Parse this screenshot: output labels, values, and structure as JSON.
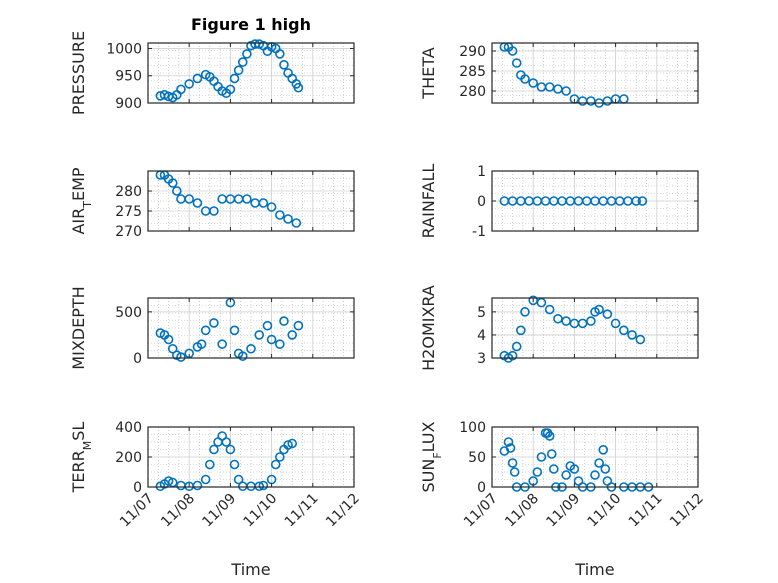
{
  "figure": {
    "title": "Figure 1 high",
    "xlabel": "Time"
  },
  "colors": {
    "marker": "#0072BD",
    "axis": "#262626",
    "grid": "#b5b5b5",
    "background": "#ffffff"
  },
  "chart_data": [
    {
      "type": "scatter",
      "panel": "PRESSURE",
      "title": "Figure 1 high",
      "ylabel": "PRESSURE",
      "ylim": [
        900,
        1010
      ],
      "yticks": [
        900,
        950,
        1000
      ],
      "grid": true,
      "xlim": [
        "11/07",
        "11/12"
      ],
      "xticks": [
        "11/07",
        "11/08",
        "11/09",
        "11/10",
        "11/11",
        "11/12"
      ],
      "show_xticklabels": false,
      "points": [
        [
          7.3,
          913
        ],
        [
          7.4,
          915
        ],
        [
          7.5,
          912
        ],
        [
          7.6,
          910
        ],
        [
          7.7,
          915
        ],
        [
          7.8,
          925
        ],
        [
          8.0,
          935
        ],
        [
          8.2,
          945
        ],
        [
          8.4,
          952
        ],
        [
          8.5,
          948
        ],
        [
          8.6,
          940
        ],
        [
          8.7,
          930
        ],
        [
          8.8,
          922
        ],
        [
          8.9,
          918
        ],
        [
          9.0,
          925
        ],
        [
          9.1,
          945
        ],
        [
          9.2,
          960
        ],
        [
          9.3,
          975
        ],
        [
          9.4,
          990
        ],
        [
          9.5,
          1005
        ],
        [
          9.6,
          1008
        ],
        [
          9.7,
          1008
        ],
        [
          9.8,
          1005
        ],
        [
          9.9,
          995
        ],
        [
          10.0,
          1003
        ],
        [
          10.1,
          1000
        ],
        [
          10.2,
          990
        ],
        [
          10.3,
          970
        ],
        [
          10.4,
          955
        ],
        [
          10.5,
          945
        ],
        [
          10.6,
          935
        ],
        [
          10.65,
          928
        ]
      ]
    },
    {
      "type": "scatter",
      "panel": "THETA",
      "ylabel": "THETA",
      "ylim": [
        277,
        292
      ],
      "yticks": [
        280,
        285,
        290
      ],
      "grid": true,
      "xlim": [
        "11/07",
        "11/12"
      ],
      "xticks": [
        "11/07",
        "11/08",
        "11/09",
        "11/10",
        "11/11",
        "11/12"
      ],
      "show_xticklabels": false,
      "points": [
        [
          7.3,
          291
        ],
        [
          7.4,
          291
        ],
        [
          7.5,
          290
        ],
        [
          7.6,
          287
        ],
        [
          7.7,
          284
        ],
        [
          7.8,
          283
        ],
        [
          8.0,
          282
        ],
        [
          8.2,
          281
        ],
        [
          8.4,
          281
        ],
        [
          8.6,
          280.5
        ],
        [
          8.8,
          280
        ],
        [
          9.0,
          278
        ],
        [
          9.2,
          277.5
        ],
        [
          9.4,
          277.5
        ],
        [
          9.6,
          277
        ],
        [
          9.8,
          277.5
        ],
        [
          10.0,
          278
        ],
        [
          10.2,
          278
        ]
      ]
    },
    {
      "type": "scatter",
      "panel": "AIR_TEMP",
      "ylabel": "AIR_TEMP",
      "ylim": [
        270,
        285
      ],
      "yticks": [
        270,
        275,
        280
      ],
      "grid": true,
      "xlim": [
        "11/07",
        "11/12"
      ],
      "xticks": [
        "11/07",
        "11/08",
        "11/09",
        "11/10",
        "11/11",
        "11/12"
      ],
      "show_xticklabels": false,
      "points": [
        [
          7.3,
          284
        ],
        [
          7.4,
          284
        ],
        [
          7.5,
          283
        ],
        [
          7.6,
          282
        ],
        [
          7.7,
          280
        ],
        [
          7.8,
          278
        ],
        [
          8.0,
          278
        ],
        [
          8.2,
          277
        ],
        [
          8.4,
          275
        ],
        [
          8.6,
          275
        ],
        [
          8.8,
          278
        ],
        [
          9.0,
          278
        ],
        [
          9.2,
          278
        ],
        [
          9.4,
          278
        ],
        [
          9.6,
          277
        ],
        [
          9.8,
          277
        ],
        [
          10.0,
          276
        ],
        [
          10.2,
          274
        ],
        [
          10.4,
          273
        ],
        [
          10.6,
          272
        ]
      ]
    },
    {
      "type": "scatter",
      "panel": "RAINFALL",
      "ylabel": "RAINFALL",
      "ylim": [
        -1,
        1
      ],
      "yticks": [
        -1,
        0,
        1
      ],
      "grid": true,
      "xlim": [
        "11/07",
        "11/12"
      ],
      "xticks": [
        "11/07",
        "11/08",
        "11/09",
        "11/10",
        "11/11",
        "11/12"
      ],
      "show_xticklabels": false,
      "points": [
        [
          7.3,
          0
        ],
        [
          7.5,
          0
        ],
        [
          7.7,
          0
        ],
        [
          7.9,
          0
        ],
        [
          8.1,
          0
        ],
        [
          8.3,
          0
        ],
        [
          8.5,
          0
        ],
        [
          8.7,
          0
        ],
        [
          8.9,
          0
        ],
        [
          9.1,
          0
        ],
        [
          9.3,
          0
        ],
        [
          9.5,
          0
        ],
        [
          9.7,
          0
        ],
        [
          9.9,
          0
        ],
        [
          10.1,
          0
        ],
        [
          10.3,
          0
        ],
        [
          10.5,
          0
        ],
        [
          10.65,
          0
        ]
      ]
    },
    {
      "type": "scatter",
      "panel": "MIXDEPTH",
      "ylabel": "MIXDEPTH",
      "ylim": [
        0,
        650
      ],
      "yticks": [
        0,
        500
      ],
      "grid": true,
      "xlim": [
        "11/07",
        "11/12"
      ],
      "xticks": [
        "11/07",
        "11/08",
        "11/09",
        "11/10",
        "11/11",
        "11/12"
      ],
      "show_xticklabels": false,
      "points": [
        [
          7.3,
          270
        ],
        [
          7.4,
          250
        ],
        [
          7.5,
          200
        ],
        [
          7.6,
          100
        ],
        [
          7.7,
          30
        ],
        [
          7.8,
          10
        ],
        [
          8.0,
          50
        ],
        [
          8.2,
          120
        ],
        [
          8.3,
          150
        ],
        [
          8.4,
          300
        ],
        [
          8.6,
          380
        ],
        [
          8.8,
          150
        ],
        [
          9.0,
          600
        ],
        [
          9.1,
          300
        ],
        [
          9.2,
          50
        ],
        [
          9.3,
          20
        ],
        [
          9.5,
          100
        ],
        [
          9.7,
          250
        ],
        [
          9.9,
          350
        ],
        [
          10.0,
          200
        ],
        [
          10.2,
          150
        ],
        [
          10.3,
          400
        ],
        [
          10.5,
          250
        ],
        [
          10.65,
          350
        ]
      ]
    },
    {
      "type": "scatter",
      "panel": "H2OMIXRA",
      "ylabel": "H2OMIXRA",
      "ylim": [
        3,
        5.6
      ],
      "yticks": [
        3,
        4,
        5
      ],
      "grid": true,
      "xlim": [
        "11/07",
        "11/12"
      ],
      "xticks": [
        "11/07",
        "11/08",
        "11/09",
        "11/10",
        "11/11",
        "11/12"
      ],
      "show_xticklabels": false,
      "points": [
        [
          7.3,
          3.1
        ],
        [
          7.4,
          3.0
        ],
        [
          7.5,
          3.1
        ],
        [
          7.6,
          3.5
        ],
        [
          7.7,
          4.2
        ],
        [
          7.8,
          5.0
        ],
        [
          8.0,
          5.5
        ],
        [
          8.2,
          5.4
        ],
        [
          8.4,
          5.1
        ],
        [
          8.6,
          4.7
        ],
        [
          8.8,
          4.6
        ],
        [
          9.0,
          4.5
        ],
        [
          9.2,
          4.5
        ],
        [
          9.4,
          4.6
        ],
        [
          9.5,
          5.0
        ],
        [
          9.6,
          5.1
        ],
        [
          9.8,
          4.9
        ],
        [
          10.0,
          4.5
        ],
        [
          10.2,
          4.2
        ],
        [
          10.4,
          4.0
        ],
        [
          10.6,
          3.8
        ]
      ]
    },
    {
      "type": "scatter",
      "panel": "TERR_MSL",
      "ylabel": "TERR_MSL",
      "ylim": [
        0,
        400
      ],
      "yticks": [
        0,
        200,
        400
      ],
      "grid": true,
      "xlim": [
        "11/07",
        "11/12"
      ],
      "xticks": [
        "11/07",
        "11/08",
        "11/09",
        "11/10",
        "11/11",
        "11/12"
      ],
      "show_xticklabels": true,
      "points": [
        [
          7.3,
          5
        ],
        [
          7.4,
          20
        ],
        [
          7.5,
          40
        ],
        [
          7.6,
          30
        ],
        [
          7.8,
          10
        ],
        [
          8.0,
          5
        ],
        [
          8.2,
          10
        ],
        [
          8.4,
          50
        ],
        [
          8.5,
          150
        ],
        [
          8.6,
          250
        ],
        [
          8.7,
          300
        ],
        [
          8.8,
          340
        ],
        [
          8.9,
          300
        ],
        [
          9.0,
          250
        ],
        [
          9.1,
          150
        ],
        [
          9.2,
          50
        ],
        [
          9.3,
          5
        ],
        [
          9.5,
          5
        ],
        [
          9.7,
          5
        ],
        [
          9.8,
          10
        ],
        [
          10.0,
          50
        ],
        [
          10.1,
          150
        ],
        [
          10.2,
          200
        ],
        [
          10.3,
          250
        ],
        [
          10.4,
          280
        ],
        [
          10.5,
          290
        ]
      ]
    },
    {
      "type": "scatter",
      "panel": "SUN_FLUX",
      "ylabel": "SUN_FLUX",
      "ylim": [
        0,
        100
      ],
      "yticks": [
        0,
        50,
        100
      ],
      "grid": true,
      "xlim": [
        "11/07",
        "11/12"
      ],
      "xticks": [
        "11/07",
        "11/08",
        "11/09",
        "11/10",
        "11/11",
        "11/12"
      ],
      "show_xticklabels": true,
      "points": [
        [
          7.3,
          60
        ],
        [
          7.4,
          75
        ],
        [
          7.45,
          65
        ],
        [
          7.5,
          40
        ],
        [
          7.55,
          25
        ],
        [
          7.6,
          0
        ],
        [
          7.8,
          0
        ],
        [
          8.0,
          10
        ],
        [
          8.1,
          25
        ],
        [
          8.2,
          50
        ],
        [
          8.3,
          90
        ],
        [
          8.35,
          90
        ],
        [
          8.4,
          85
        ],
        [
          8.45,
          55
        ],
        [
          8.5,
          30
        ],
        [
          8.55,
          0
        ],
        [
          8.7,
          0
        ],
        [
          8.8,
          20
        ],
        [
          8.9,
          35
        ],
        [
          9.0,
          30
        ],
        [
          9.1,
          10
        ],
        [
          9.2,
          0
        ],
        [
          9.4,
          0
        ],
        [
          9.5,
          20
        ],
        [
          9.6,
          40
        ],
        [
          9.7,
          62
        ],
        [
          9.75,
          30
        ],
        [
          9.8,
          10
        ],
        [
          9.9,
          0
        ],
        [
          10.2,
          0
        ],
        [
          10.4,
          0
        ],
        [
          10.6,
          0
        ],
        [
          10.8,
          0
        ]
      ]
    }
  ]
}
